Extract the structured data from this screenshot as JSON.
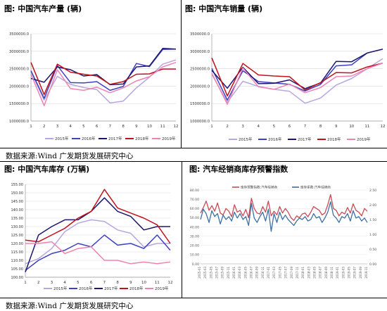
{
  "titles": {
    "production": "图:  中国汽车产量 (辆)",
    "sales": "图:  中国汽车销量 (辆)",
    "inventory": "图:  中国汽车库存 (万辆)",
    "warning": "图:  汽车经销商库存预警指数"
  },
  "source_text": "数据来源:Wind  广发期货发展研究中心",
  "chart_data": [
    {
      "id": "production",
      "type": "line",
      "categories": [
        "1",
        "2",
        "3",
        "4",
        "5",
        "6",
        "7",
        "8",
        "9",
        "10",
        "11",
        "12"
      ],
      "yticks": [
        "1000000.0",
        "1500000.0",
        "2000000.0",
        "2500000.0",
        "3000000.0",
        "3500000.0"
      ],
      "ylim": [
        1000000,
        3500000
      ],
      "series": [
        {
          "name": "2015年",
          "color": "#b7a6e0",
          "values": [
            2420000,
            1600000,
            2280000,
            2050000,
            1960000,
            1900000,
            1520000,
            1570000,
            1950000,
            2260000,
            2630000,
            2750000
          ]
        },
        {
          "name": "2016年",
          "color": "#3d42c2",
          "values": [
            2440000,
            1650000,
            2590000,
            2100000,
            2090000,
            2130000,
            1880000,
            1990000,
            2650000,
            2560000,
            3050000,
            3060000
          ]
        },
        {
          "name": "2017年",
          "color": "#1c1670",
          "values": [
            2220000,
            2110000,
            2550000,
            2470000,
            2290000,
            2330000,
            2040000,
            2060000,
            2550000,
            2580000,
            3080000,
            3060000
          ]
        },
        {
          "name": "2018年",
          "color": "#c0121c",
          "values": [
            2680000,
            1760000,
            2630000,
            2400000,
            2340000,
            2290000,
            2050000,
            2130000,
            2340000,
            2350000,
            2490000,
            2490000
          ]
        },
        {
          "name": "2019年",
          "color": "#ef82b4",
          "values": [
            2340000,
            1440000,
            2470000,
            1930000,
            1880000,
            1970000,
            1810000,
            1950000,
            2150000,
            2270000,
            2550000,
            2680000
          ]
        }
      ]
    },
    {
      "id": "sales",
      "type": "line",
      "categories": [
        "1",
        "2",
        "3",
        "4",
        "5",
        "6",
        "7",
        "8",
        "9",
        "10",
        "11",
        "12"
      ],
      "yticks": [
        "1000000.0",
        "1500000.0",
        "2000000.0",
        "2500000.0",
        "3000000.0",
        "3500000.0"
      ],
      "ylim": [
        1000000,
        3500000
      ],
      "series": [
        {
          "name": "2015年",
          "color": "#b7a6e0",
          "values": [
            2340000,
            1540000,
            2140000,
            1990000,
            1910000,
            1850000,
            1510000,
            1660000,
            2030000,
            2220000,
            2500000,
            2790000
          ]
        },
        {
          "name": "2016年",
          "color": "#3d42c2",
          "values": [
            2510000,
            1600000,
            2440000,
            2130000,
            2090000,
            2050000,
            1860000,
            2050000,
            2580000,
            2610000,
            2950000,
            3060000
          ]
        },
        {
          "name": "2017年",
          "color": "#1c1670",
          "values": [
            2450000,
            1940000,
            2540000,
            2070000,
            2080000,
            2180000,
            1930000,
            2090000,
            2710000,
            2700000,
            2950000,
            3060000
          ]
        },
        {
          "name": "2018年",
          "color": "#c0121c",
          "values": [
            2810000,
            1720000,
            2650000,
            2320000,
            2290000,
            2270000,
            1890000,
            2100000,
            2390000,
            2380000,
            2550000,
            2660000
          ]
        },
        {
          "name": "2019年",
          "color": "#ef82b4",
          "values": [
            2370000,
            1480000,
            2520000,
            1980000,
            1910000,
            2060000,
            1810000,
            1960000,
            2270000,
            2290000,
            2500000,
            2660000
          ]
        }
      ]
    },
    {
      "id": "inventory",
      "type": "line",
      "categories": [
        "1",
        "2",
        "3",
        "4",
        "5",
        "6",
        "7",
        "8",
        "9",
        "10",
        "11",
        "12"
      ],
      "yticks": [
        "100.00",
        "105.00",
        "110.00",
        "115.00",
        "120.00",
        "125.00",
        "130.00",
        "135.00",
        "140.00",
        "145.00",
        "150.00",
        "155.00"
      ],
      "ylim": [
        100,
        155
      ],
      "series": [
        {
          "name": "2015年",
          "color": "#b7a6e0",
          "values": [
            108,
            111,
            117,
            127,
            132,
            134,
            133,
            128,
            126,
            118,
            120,
            120
          ]
        },
        {
          "name": "2016年",
          "color": "#3d42c2",
          "values": [
            104,
            110,
            114,
            116,
            120,
            118,
            125,
            119,
            120,
            117,
            125,
            116
          ]
        },
        {
          "name": "2017年",
          "color": "#1c1670",
          "values": [
            103,
            125,
            130,
            134,
            134,
            139,
            147,
            139,
            136,
            128,
            130,
            130
          ]
        },
        {
          "name": "2018年",
          "color": "#c0121c",
          "values": [
            122,
            121,
            125,
            129,
            135,
            139,
            152,
            141,
            138,
            135,
            131,
            120
          ]
        },
        {
          "name": "2019年",
          "color": "#ef82b4",
          "values": [
            120,
            120,
            121,
            114,
            117,
            118,
            110,
            110,
            108,
            109,
            108,
            109
          ]
        }
      ]
    },
    {
      "id": "warning",
      "type": "line",
      "legend": [
        "库存预警指数:汽车经销商",
        "库存系数:汽车经销商"
      ],
      "yticks_left": [
        "0.00",
        "10.00",
        "20.00",
        "30.00",
        "40.00",
        "50.00",
        "60.00",
        "70.00",
        "80.00"
      ],
      "yticks_right": [
        "0.00",
        "0.50",
        "1.00",
        "1.50",
        "2.00",
        "2.50"
      ],
      "ylim_left": [
        0,
        80
      ],
      "ylim_right": [
        0,
        2.5
      ],
      "xticks": [
        "2015-01",
        "2015-03",
        "2015-05",
        "2015-07",
        "2015-09",
        "2015-11",
        "2016-01",
        "2016-03",
        "2016-05",
        "2016-07",
        "2016-09",
        "2016-11",
        "2017-01",
        "2017-03",
        "2017-05",
        "2017-07",
        "2017-09",
        "2017-11",
        "2018-01",
        "2018-03",
        "2018-05",
        "2018-07",
        "2018-09",
        "2018-11",
        "2019-01",
        "2019-03",
        "2019-05",
        "2019-07",
        "2019-09",
        "2019-11"
      ],
      "series": [
        {
          "name": "库存预警指数:汽车经销商",
          "axis": "left",
          "color": "#c84b55",
          "values": [
            55,
            61,
            68,
            58,
            63,
            57,
            66,
            55,
            53,
            60,
            57,
            51,
            64,
            56,
            58,
            52,
            59,
            50,
            71,
            60,
            55,
            54,
            62,
            56,
            68,
            52,
            57,
            53,
            62,
            55,
            60,
            56,
            50,
            47,
            52,
            50,
            54,
            55,
            51,
            56,
            62,
            60,
            58,
            53,
            55,
            64,
            75,
            60,
            58,
            52,
            56,
            54,
            61,
            55,
            65,
            58,
            56,
            52,
            60,
            57
          ]
        },
        {
          "name": "库存系数:汽车经销商",
          "axis": "right",
          "color": "#3d70a0",
          "values": [
            1.5,
            1.85,
            1.7,
            1.4,
            1.8,
            1.6,
            1.7,
            1.35,
            1.65,
            1.5,
            1.6,
            1.45,
            1.75,
            1.55,
            1.7,
            1.5,
            1.6,
            1.3,
            2.05,
            1.55,
            1.4,
            1.6,
            1.75,
            1.45,
            1.85,
            1.1,
            1.7,
            1.4,
            1.75,
            1.5,
            1.65,
            1.5,
            1.4,
            1.3,
            1.45,
            1.55,
            1.5,
            1.6,
            1.45,
            1.5,
            1.7,
            1.55,
            1.6,
            1.4,
            1.55,
            1.75,
            2.1,
            1.65,
            1.55,
            1.4,
            1.6,
            1.55,
            1.7,
            1.45,
            1.8,
            1.55,
            1.6,
            1.45,
            1.55,
            1.4
          ]
        }
      ]
    }
  ]
}
